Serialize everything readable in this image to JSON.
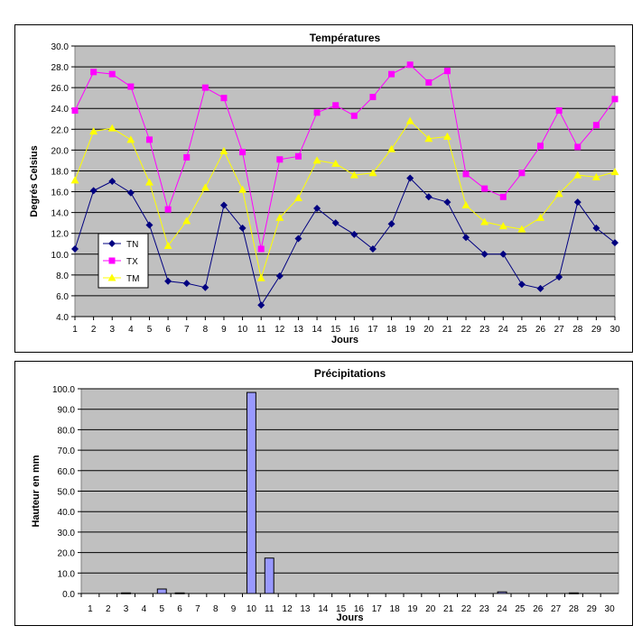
{
  "chart_data": [
    {
      "type": "line",
      "title": "Températures",
      "xlabel": "Jours",
      "ylabel": "Degrés Celsius",
      "x": [
        1,
        2,
        3,
        4,
        5,
        6,
        7,
        8,
        9,
        10,
        11,
        12,
        13,
        14,
        15,
        16,
        17,
        18,
        19,
        20,
        21,
        22,
        23,
        24,
        25,
        26,
        27,
        28,
        29,
        30
      ],
      "x_tick_labels": [
        "1",
        "2",
        "3",
        "4",
        "5",
        "6",
        "7",
        "8",
        "9",
        "10",
        "11",
        "12",
        "13",
        "14",
        "15",
        "16",
        "17",
        "18",
        "19",
        "20",
        "21",
        "22",
        "23",
        "24",
        "25",
        "26",
        "27",
        "28",
        "29",
        "30"
      ],
      "ylim": [
        4.0,
        30.0
      ],
      "y_tick_labels": [
        "4.0",
        "6.0",
        "8.0",
        "10.0",
        "12.0",
        "14.0",
        "16.0",
        "18.0",
        "20.0",
        "22.0",
        "24.0",
        "26.0",
        "28.0",
        "30.0"
      ],
      "grid": true,
      "legend_position": "left",
      "plot_background": "#c0c0c0",
      "series": [
        {
          "name": "TN",
          "color": "#000080",
          "marker": "diamond",
          "values": [
            10.5,
            16.1,
            17.0,
            15.9,
            12.8,
            7.4,
            7.2,
            6.8,
            14.7,
            12.5,
            5.1,
            7.9,
            11.5,
            14.4,
            13.0,
            11.9,
            10.5,
            12.9,
            17.3,
            15.5,
            15.0,
            11.6,
            10.0,
            10.0,
            7.1,
            6.7,
            7.8,
            15.0,
            12.5,
            11.1
          ]
        },
        {
          "name": "TX",
          "color": "#ff00ff",
          "marker": "square",
          "values": [
            23.8,
            27.5,
            27.3,
            26.1,
            21.0,
            14.3,
            19.3,
            26.0,
            25.0,
            19.8,
            10.5,
            19.1,
            19.4,
            23.6,
            24.3,
            23.3,
            25.1,
            27.3,
            28.2,
            26.5,
            27.6,
            17.7,
            16.3,
            15.5,
            17.8,
            20.4,
            23.8,
            20.3,
            22.4,
            24.9
          ]
        },
        {
          "name": "TM",
          "color": "#ffff00",
          "marker": "triangle",
          "values": [
            17.1,
            21.8,
            22.1,
            21.0,
            16.9,
            10.8,
            13.2,
            16.4,
            19.9,
            16.2,
            7.7,
            13.5,
            15.4,
            19.0,
            18.7,
            17.6,
            17.8,
            20.1,
            22.8,
            21.1,
            21.3,
            14.7,
            13.1,
            12.7,
            12.4,
            13.5,
            15.8,
            17.6,
            17.4,
            17.9
          ]
        }
      ]
    },
    {
      "type": "bar",
      "title": "Précipitations",
      "xlabel": "Jours",
      "ylabel": "Hauteur en mm",
      "categories": [
        "1",
        "2",
        "3",
        "4",
        "5",
        "6",
        "7",
        "8",
        "9",
        "10",
        "11",
        "12",
        "13",
        "14",
        "15",
        "16",
        "17",
        "18",
        "19",
        "20",
        "21",
        "22",
        "23",
        "24",
        "25",
        "26",
        "27",
        "28",
        "29",
        "30"
      ],
      "ylim": [
        0.0,
        100.0
      ],
      "y_tick_labels": [
        "0.0",
        "10.0",
        "20.0",
        "30.0",
        "40.0",
        "50.0",
        "60.0",
        "70.0",
        "80.0",
        "90.0",
        "100.0"
      ],
      "grid": true,
      "plot_background": "#c0c0c0",
      "bar_color": "#9999ff",
      "values": [
        0,
        0,
        0.3,
        0,
        2.2,
        0.3,
        0,
        0,
        0,
        98.2,
        17.3,
        0,
        0,
        0,
        0,
        0,
        0,
        0,
        0,
        0,
        0,
        0,
        0,
        0.8,
        0,
        0,
        0,
        0.3,
        0,
        0
      ]
    }
  ]
}
